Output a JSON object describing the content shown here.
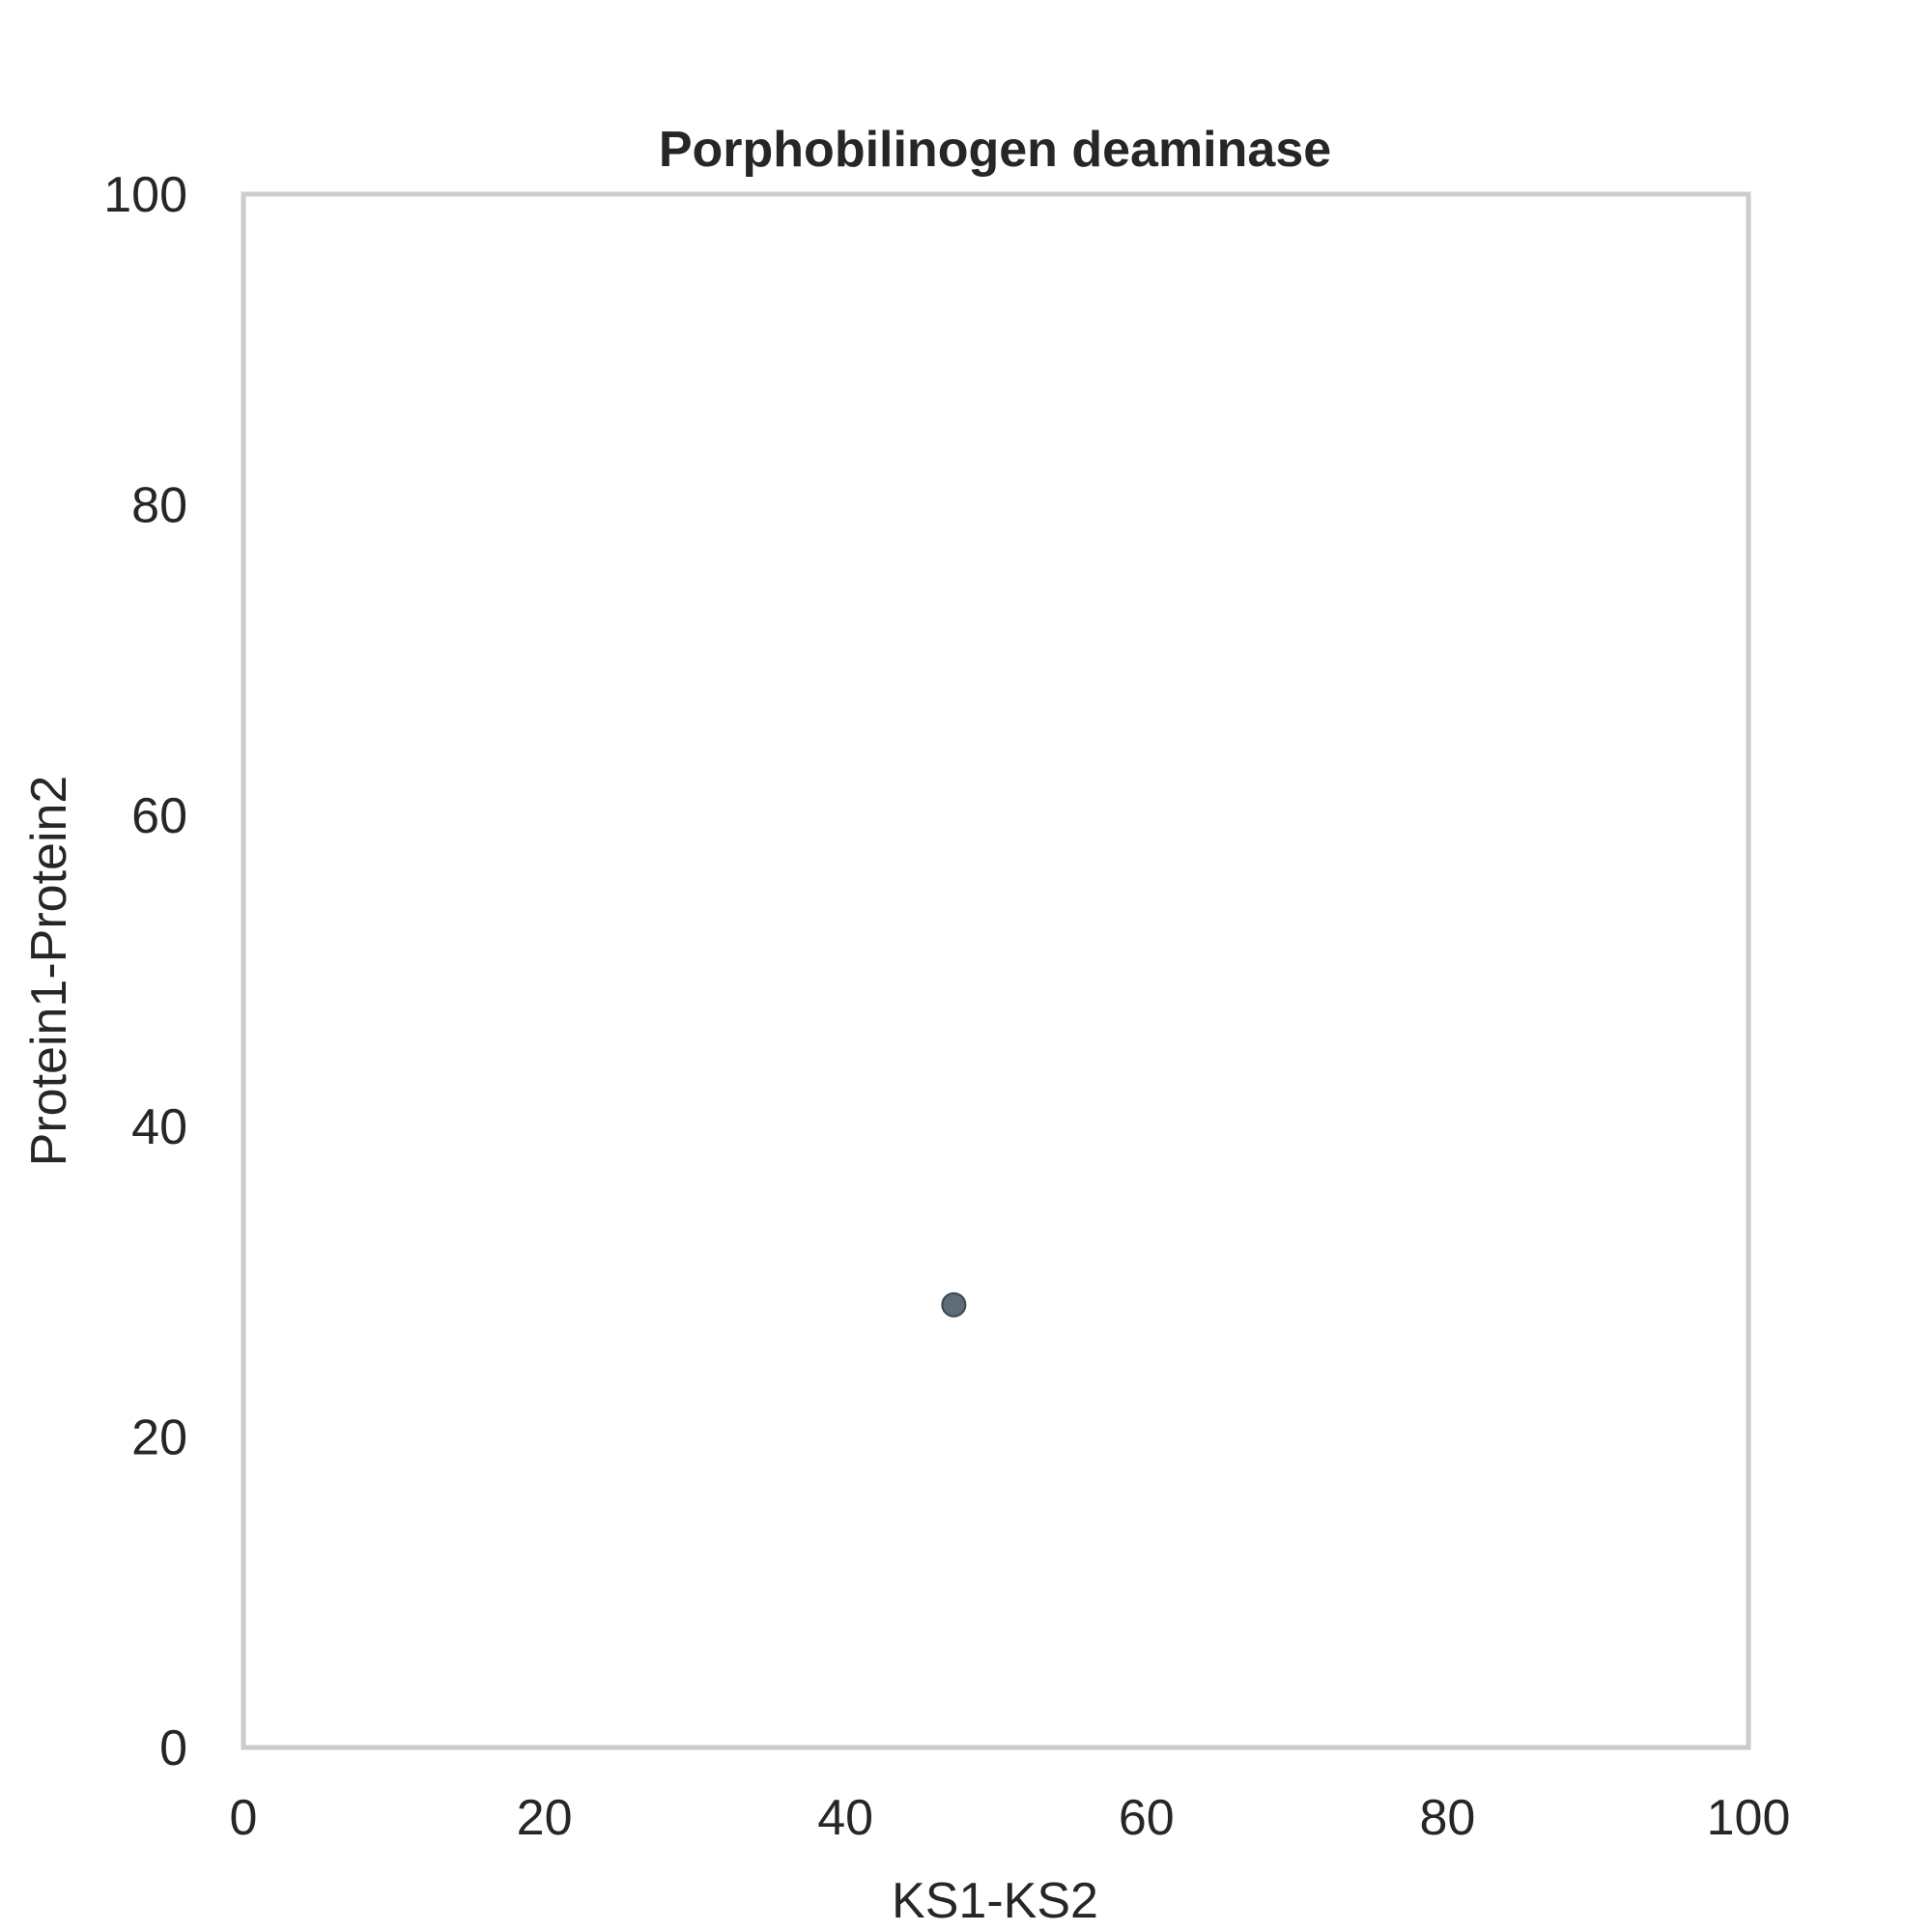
{
  "chart_data": {
    "type": "scatter",
    "title": "Porphobilinogen deaminase",
    "xlabel": "KS1-KS2",
    "ylabel": "Protein1-Protein2",
    "xlim": [
      0,
      100
    ],
    "ylim": [
      0,
      100
    ],
    "x_ticks": [
      "0",
      "20",
      "40",
      "60",
      "80",
      "100"
    ],
    "y_ticks": [
      "0",
      "20",
      "40",
      "60",
      "80",
      "100"
    ],
    "grid": false,
    "legend": "none",
    "point_color": "#4c5c68",
    "points": [
      {
        "x": 47.2,
        "y": 28.5
      }
    ]
  }
}
